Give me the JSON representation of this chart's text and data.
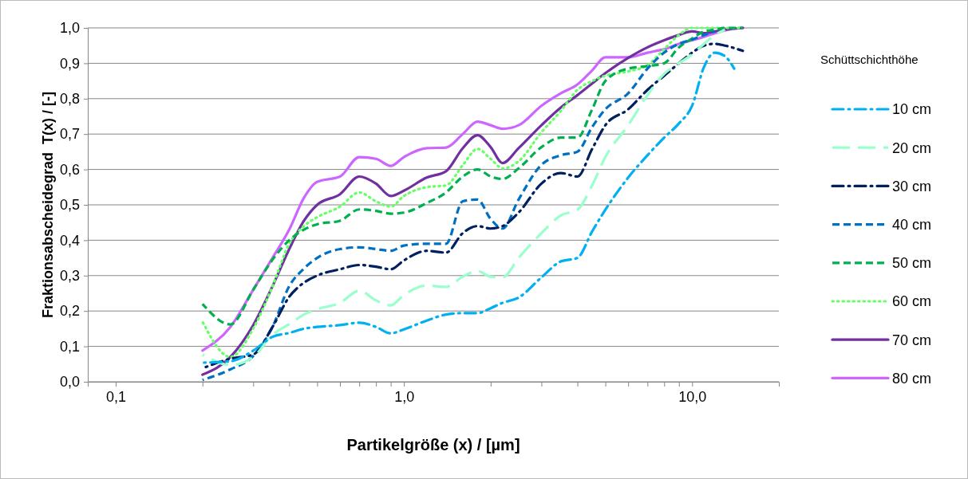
{
  "chart_data": {
    "type": "line",
    "xlabel": "Partikelgröße (x) / [µm]",
    "ylabel": "Fraktionsabscheidegrad  T(x) / [-]",
    "legend_title": "Schüttschichthöhe",
    "legend": "right",
    "grid": "y",
    "log": "x",
    "xlim": [
      0.08,
      20
    ],
    "xticks": [
      {
        "value": 0.1,
        "label": "0,1"
      },
      {
        "value": 0.2,
        "label": null
      },
      {
        "value": 0.3,
        "label": null
      },
      {
        "value": 0.4,
        "label": null
      },
      {
        "value": 0.5,
        "label": null
      },
      {
        "value": 0.6,
        "label": null
      },
      {
        "value": 0.7,
        "label": null
      },
      {
        "value": 0.8,
        "label": null
      },
      {
        "value": 0.9,
        "label": null
      },
      {
        "value": 1,
        "label": "1,0"
      },
      {
        "value": 2,
        "label": null
      },
      {
        "value": 3,
        "label": null
      },
      {
        "value": 4,
        "label": null
      },
      {
        "value": 5,
        "label": null
      },
      {
        "value": 6,
        "label": null
      },
      {
        "value": 7,
        "label": null
      },
      {
        "value": 8,
        "label": null
      },
      {
        "value": 9,
        "label": null
      },
      {
        "value": 10,
        "label": "10,0"
      }
    ],
    "ylim": [
      0,
      1
    ],
    "yticks": [
      {
        "value": 0,
        "label": "0,0"
      },
      {
        "value": 0.1,
        "label": "0,1"
      },
      {
        "value": 0.2,
        "label": "0,2"
      },
      {
        "value": 0.3,
        "label": "0,3"
      },
      {
        "value": 0.4,
        "label": "0,4"
      },
      {
        "value": 0.5,
        "label": "0,5"
      },
      {
        "value": 0.6,
        "label": "0,6"
      },
      {
        "value": 0.7,
        "label": "0,7"
      },
      {
        "value": 0.8,
        "label": "0,8"
      },
      {
        "value": 0.9,
        "label": "0,9"
      },
      {
        "value": 1,
        "label": "1,0"
      }
    ],
    "x": [
      0.2,
      0.25,
      0.3,
      0.35,
      0.4,
      0.45,
      0.5,
      0.6,
      0.7,
      0.8,
      0.9,
      1.0,
      1.2,
      1.4,
      1.6,
      1.8,
      2.0,
      2.2,
      2.5,
      3,
      3.5,
      4,
      4.5,
      5,
      6,
      7,
      8,
      9,
      10,
      11,
      12,
      13,
      15
    ],
    "series": [
      {
        "name": "10 cm",
        "color": "#00b0f0",
        "line_style": "dashdot",
        "x": [
          0.2,
          0.25,
          0.3,
          0.35,
          0.4,
          0.45,
          0.5,
          0.6,
          0.7,
          0.8,
          0.9,
          1.0,
          1.2,
          1.4,
          1.6,
          1.8,
          2.0,
          2.2,
          2.5,
          3,
          3.5,
          4,
          4.5,
          5,
          6,
          7,
          8,
          9,
          10,
          11,
          12,
          13,
          14
        ],
        "values": [
          0.054,
          0.058,
          0.088,
          0.127,
          0.138,
          0.15,
          0.155,
          0.16,
          0.167,
          0.155,
          0.137,
          0.148,
          0.173,
          0.19,
          0.194,
          0.194,
          0.208,
          0.223,
          0.238,
          0.295,
          0.34,
          0.35,
          0.425,
          0.486,
          0.577,
          0.64,
          0.69,
          0.73,
          0.78,
          0.89,
          0.93,
          0.92,
          0.885
        ]
      },
      {
        "name": "20 cm",
        "color": "#99ffcc",
        "line_style": "longdash",
        "x": [
          0.2,
          0.25,
          0.3,
          0.35,
          0.4,
          0.45,
          0.5,
          0.6,
          0.7,
          0.8,
          0.9,
          1.0,
          1.2,
          1.4,
          1.6,
          1.8,
          2.0,
          2.2,
          2.5,
          3,
          3.5,
          4,
          4.5,
          5,
          6,
          7,
          8,
          9,
          10,
          11,
          12,
          13
        ],
        "values": [
          0.077,
          0.047,
          0.07,
          0.133,
          0.163,
          0.19,
          0.205,
          0.223,
          0.257,
          0.23,
          0.216,
          0.245,
          0.272,
          0.268,
          0.297,
          0.313,
          0.297,
          0.295,
          0.35,
          0.42,
          0.47,
          0.486,
          0.555,
          0.635,
          0.725,
          0.81,
          0.87,
          0.9,
          0.925,
          0.955,
          0.98,
          0.995
        ]
      },
      {
        "name": "30 cm",
        "color": "#002060",
        "line_style": "dashdot",
        "values": [
          0.038,
          0.065,
          0.077,
          0.155,
          0.24,
          0.28,
          0.3,
          0.318,
          0.33,
          0.325,
          0.318,
          0.343,
          0.37,
          0.365,
          0.42,
          0.44,
          0.433,
          0.44,
          0.478,
          0.56,
          0.59,
          0.58,
          0.658,
          0.725,
          0.77,
          0.825,
          0.865,
          0.9,
          0.93,
          0.95,
          0.955,
          0.95,
          0.935
        ]
      },
      {
        "name": "40 cm",
        "color": "#0070c0",
        "line_style": "dashed",
        "values": [
          0.005,
          0.035,
          0.073,
          0.155,
          0.27,
          0.32,
          0.35,
          0.375,
          0.38,
          0.375,
          0.37,
          0.385,
          0.39,
          0.39,
          0.51,
          0.515,
          0.46,
          0.433,
          0.515,
          0.613,
          0.64,
          0.65,
          0.72,
          0.77,
          0.815,
          0.885,
          0.93,
          0.955,
          0.967,
          0.98,
          0.99,
          null,
          null
        ]
      },
      {
        "name": "50 cm",
        "color": "#00b050",
        "line_style": "dashed",
        "values": [
          0.22,
          0.162,
          0.26,
          0.345,
          0.4,
          0.43,
          0.445,
          0.455,
          0.487,
          0.483,
          0.475,
          0.478,
          0.505,
          0.535,
          0.58,
          0.6,
          0.58,
          0.573,
          0.603,
          0.663,
          0.69,
          0.69,
          0.77,
          0.85,
          0.885,
          0.892,
          0.9,
          0.945,
          0.97,
          0.99,
          0.995,
          1.0,
          1.0
        ]
      },
      {
        "name": "60 cm",
        "color": "#66ff66",
        "line_style": "dotted",
        "values": [
          0.17,
          0.07,
          0.15,
          0.27,
          0.39,
          0.44,
          0.465,
          0.495,
          0.535,
          0.51,
          0.495,
          0.525,
          0.55,
          0.555,
          0.612,
          0.658,
          0.63,
          0.603,
          0.623,
          0.705,
          0.765,
          0.825,
          0.85,
          0.865,
          0.877,
          0.895,
          0.94,
          0.98,
          1.0,
          1.0,
          1.0,
          1.0,
          1.0
        ]
      },
      {
        "name": "70 cm",
        "color": "#7030a0",
        "line_style": "solid",
        "values": [
          0.02,
          0.07,
          0.16,
          0.27,
          0.375,
          0.455,
          0.5,
          0.53,
          0.58,
          0.56,
          0.525,
          0.54,
          0.577,
          0.595,
          0.66,
          0.697,
          0.663,
          0.618,
          0.66,
          0.725,
          0.775,
          0.81,
          0.843,
          0.872,
          0.915,
          0.945,
          0.965,
          0.98,
          0.99,
          0.985,
          0.99,
          0.995,
          1.0
        ]
      },
      {
        "name": "80 cm",
        "color": "#cc66ff",
        "line_style": "solid",
        "values": [
          0.088,
          0.155,
          0.26,
          0.35,
          0.43,
          0.52,
          0.565,
          0.58,
          0.635,
          0.63,
          0.61,
          0.635,
          0.66,
          0.662,
          0.7,
          0.735,
          0.725,
          0.715,
          0.725,
          0.78,
          0.815,
          0.84,
          0.88,
          0.917,
          0.917,
          0.93,
          0.94,
          0.955,
          0.965,
          0.975,
          0.985,
          0.993,
          1.0
        ]
      }
    ]
  }
}
